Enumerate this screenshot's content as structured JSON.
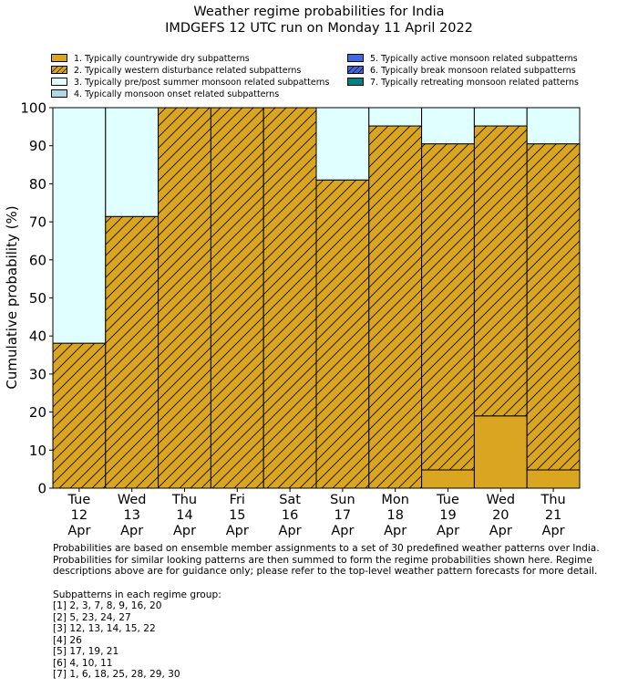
{
  "chart_data": {
    "type": "bar",
    "stacked": true,
    "title": "Weather regime probabilities for India",
    "subtitle": "IMDGEFS 12 UTC run on Monday 11 April 2022",
    "ylabel": "Cumulative probability (%)",
    "xlabel": "",
    "ylim": [
      0,
      100
    ],
    "yticks": [
      0,
      10,
      20,
      30,
      40,
      50,
      60,
      70,
      80,
      90,
      100
    ],
    "grid": false,
    "legend_position": "top",
    "categories": [
      [
        "Tue",
        "12",
        "Apr"
      ],
      [
        "Wed",
        "13",
        "Apr"
      ],
      [
        "Thu",
        "14",
        "Apr"
      ],
      [
        "Fri",
        "15",
        "Apr"
      ],
      [
        "Sat",
        "16",
        "Apr"
      ],
      [
        "Sun",
        "17",
        "Apr"
      ],
      [
        "Mon",
        "18",
        "Apr"
      ],
      [
        "Tue",
        "19",
        "Apr"
      ],
      [
        "Wed",
        "20",
        "Apr"
      ],
      [
        "Thu",
        "21",
        "Apr"
      ]
    ],
    "series": [
      {
        "name": "1. Typically countrywide dry subpatterns",
        "color": "#DAA520",
        "hatch": false,
        "values": [
          0,
          0,
          0,
          0,
          0,
          0,
          0,
          4.8,
          19.0,
          4.8
        ]
      },
      {
        "name": "2. Typically western disturbance related subpatterns",
        "color": "#DAA520",
        "hatch": true,
        "values": [
          38.1,
          71.4,
          100,
          100,
          100,
          81.0,
          95.2,
          85.7,
          76.2,
          85.7
        ]
      },
      {
        "name": "3. Typically pre/post summer monsoon related subpatterns",
        "color": "#E0FFFF",
        "hatch": false,
        "values": [
          61.9,
          28.6,
          0,
          0,
          0,
          19.0,
          4.8,
          9.5,
          4.8,
          9.5
        ]
      },
      {
        "name": "4. Typically monsoon onset related subpatterns",
        "color": "#ADD8E6",
        "hatch": false,
        "values": [
          0,
          0,
          0,
          0,
          0,
          0,
          0,
          0,
          0,
          0
        ]
      },
      {
        "name": "5. Typically active monsoon related subpatterns",
        "color": "#4169E1",
        "hatch": false,
        "values": [
          0,
          0,
          0,
          0,
          0,
          0,
          0,
          0,
          0,
          0
        ]
      },
      {
        "name": "6. Typically break monsoon related subpatterns",
        "color": "#4169E1",
        "hatch": true,
        "values": [
          0,
          0,
          0,
          0,
          0,
          0,
          0,
          0,
          0,
          0
        ]
      },
      {
        "name": "7. Typically retreating monsoon related patterns",
        "color": "#008080",
        "hatch": false,
        "values": [
          0,
          0,
          0,
          0,
          0,
          0,
          0,
          0,
          0,
          0
        ]
      }
    ]
  },
  "footnote": {
    "description": [
      "Probabilities are based on ensemble member assignments to a set of 30 predefined weather patterns over India.",
      "Probabilities for similar looking patterns are then summed to form the regime probabilities shown here. Regime",
      "descriptions above are for guidance only; please refer to the top-level weather pattern forecasts for more detail."
    ],
    "groups_heading": "Subpatterns in each regime group:",
    "groups": [
      "[1] 2, 3, 7, 8, 9, 16, 20",
      "[2] 5, 23, 24, 27",
      "[3] 12, 13, 14, 15, 22",
      "[4] 26",
      "[5] 17, 19, 21",
      "[6] 4, 10, 11",
      "[7] 1, 6, 18, 25, 28, 29, 30"
    ]
  }
}
